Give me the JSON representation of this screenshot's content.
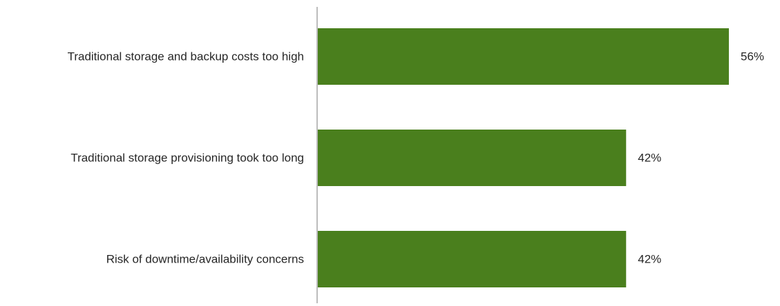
{
  "chart_data": {
    "type": "bar",
    "orientation": "horizontal",
    "categories": [
      "Traditional storage and backup costs too high",
      "Traditional storage provisioning took too long",
      "Risk of downtime/availability concerns"
    ],
    "values": [
      56,
      42,
      42
    ],
    "value_labels": [
      "56%",
      "42%",
      "42%"
    ],
    "unit": "%",
    "bar_color": "#4a7f1d",
    "axis_color": "#a6a6a6",
    "grid": false,
    "legend": "none"
  }
}
